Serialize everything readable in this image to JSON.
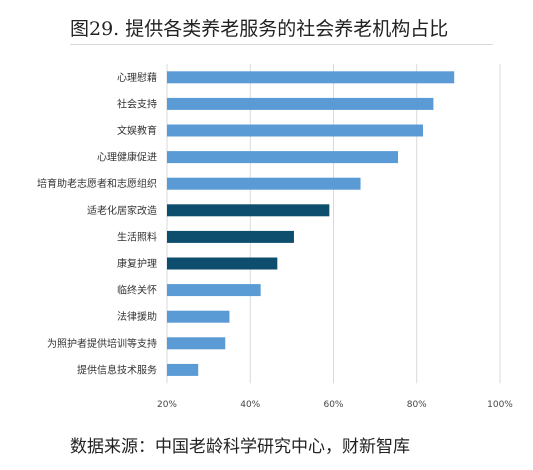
{
  "title": "图29. 提供各类养老服务的社会养老机构占比",
  "source": "数据来源：中国老龄科学研究中心，财新智库",
  "colors": {
    "light_bar": "#5b9bd5",
    "dark_bar": "#0d4e6f",
    "grid": "#d9d9d9"
  },
  "chart_data": {
    "type": "bar",
    "orientation": "horizontal",
    "categories": [
      "心理慰藉",
      "社会支持",
      "文娱教育",
      "心理健康促进",
      "培育助老志愿者和志愿组织",
      "适老化居家改造",
      "生活照料",
      "康复护理",
      "临终关怀",
      "法律援助",
      "为照护者提供培训等支持",
      "提供信息技术服务"
    ],
    "values": [
      89,
      84,
      81.5,
      75.5,
      66.5,
      59,
      50.5,
      46.5,
      42.5,
      35,
      34,
      27.5
    ],
    "highlighted": [
      false,
      false,
      false,
      false,
      false,
      true,
      true,
      true,
      false,
      false,
      false,
      false
    ],
    "x_ticks": [
      "20%",
      "40%",
      "60%",
      "80%",
      "100%"
    ],
    "xlim": [
      20,
      100
    ],
    "grid": true,
    "title": "",
    "xlabel": "",
    "ylabel": ""
  }
}
